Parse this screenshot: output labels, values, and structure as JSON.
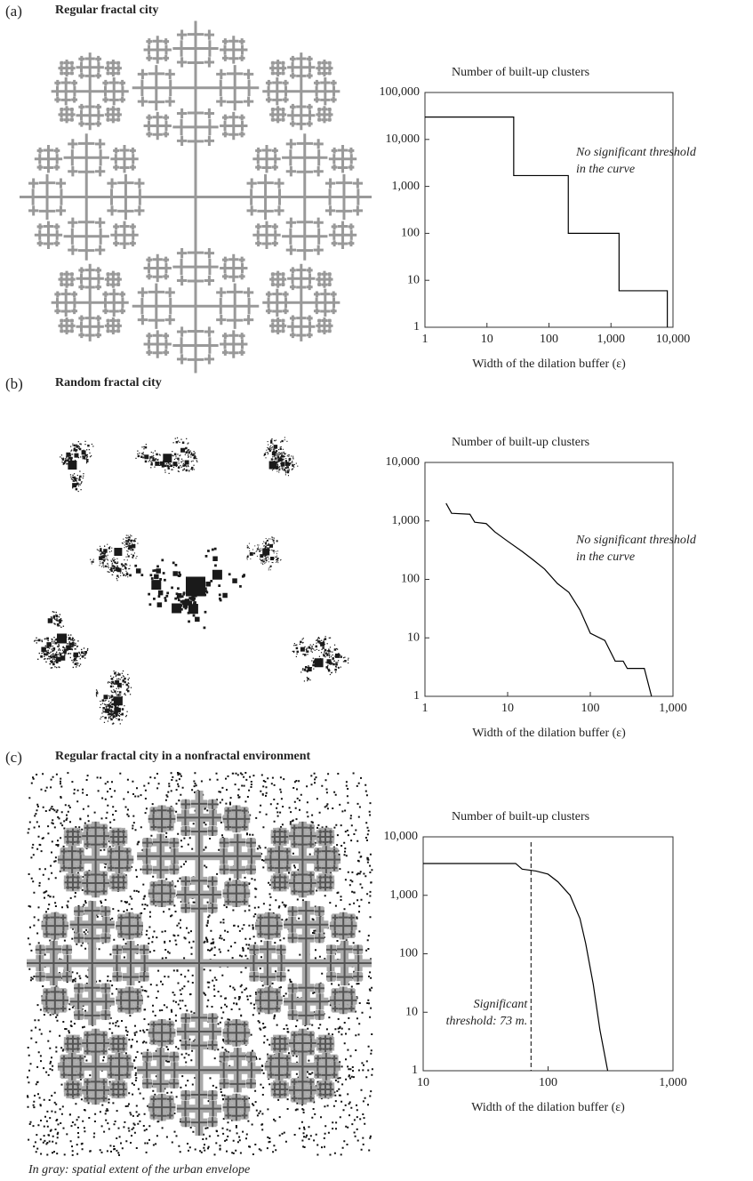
{
  "chart_data": [
    {
      "type": "line",
      "panel": "(a)",
      "image_title": "Regular fractal city",
      "y_label": "Number of built-up clusters",
      "x_label": "Width of the dilation buffer (ε)",
      "annotation": [
        "No significant threshold",
        "in the curve"
      ],
      "x": [
        1,
        27,
        27,
        205,
        205,
        1350,
        1350,
        8100,
        8100
      ],
      "values": [
        30000,
        30000,
        1700,
        1700,
        100,
        100,
        6,
        6,
        1
      ],
      "color": "#000000",
      "log_x": true,
      "log_y": true,
      "xlim": [
        1,
        10000
      ],
      "xticks": [
        1,
        10,
        100,
        {
          "value": 1000,
          "label": "1,000"
        },
        {
          "value": 10000,
          "label": "10,000"
        }
      ],
      "ylim": [
        1,
        100000
      ],
      "yticks": [
        1,
        10,
        100,
        {
          "value": 1000,
          "label": "1,000"
        },
        {
          "value": 10000,
          "label": "10,000"
        },
        {
          "value": 100000,
          "label": "100,000"
        }
      ]
    },
    {
      "type": "line",
      "panel": "(b)",
      "image_title": "Random fractal city",
      "y_label": "Number of built-up clusters",
      "x_label": "Width of the dilation buffer (ε)",
      "annotation": [
        "No significant threshold",
        "in the curve"
      ],
      "x": [
        1.8,
        2.1,
        3.5,
        4,
        5.5,
        7,
        10,
        15,
        20,
        28,
        40,
        55,
        75,
        100,
        150,
        200,
        250,
        280,
        450,
        550
      ],
      "values": [
        2000,
        1350,
        1300,
        950,
        900,
        650,
        450,
        300,
        220,
        150,
        85,
        60,
        30,
        12,
        9,
        4,
        4,
        3,
        3,
        1
      ],
      "color": "#000000",
      "log_x": true,
      "log_y": true,
      "xlim": [
        1,
        1000
      ],
      "xticks": [
        1,
        10,
        100,
        {
          "value": 1000,
          "label": "1,000"
        }
      ],
      "ylim": [
        1,
        10000
      ],
      "yticks": [
        1,
        10,
        100,
        {
          "value": 1000,
          "label": "1,000"
        },
        {
          "value": 10000,
          "label": "10,000"
        }
      ]
    },
    {
      "type": "line",
      "panel": "(c)",
      "image_title": "Regular fractal city in a nonfractal environment",
      "y_label": "Number of built-up clusters",
      "x_label": "Width of the dilation buffer (ε)",
      "annotation": [
        "Significant",
        "threshold: 73 m."
      ],
      "threshold": 73,
      "caption": "In gray: spatial extent of the urban envelope",
      "x": [
        10,
        55,
        62,
        80,
        100,
        120,
        150,
        180,
        200,
        230,
        260,
        300
      ],
      "values": [
        3500,
        3500,
        2800,
        2600,
        2300,
        1700,
        1000,
        400,
        150,
        30,
        5,
        1
      ],
      "color": "#000000",
      "log_x": true,
      "log_y": true,
      "xlim": [
        10,
        1000
      ],
      "xticks": [
        10,
        100,
        {
          "value": 1000,
          "label": "1,000"
        }
      ],
      "ylim": [
        1,
        10000
      ],
      "yticks": [
        1,
        10,
        100,
        {
          "value": 1000,
          "label": "1,000"
        },
        {
          "value": 10000,
          "label": "10,000"
        }
      ]
    }
  ]
}
